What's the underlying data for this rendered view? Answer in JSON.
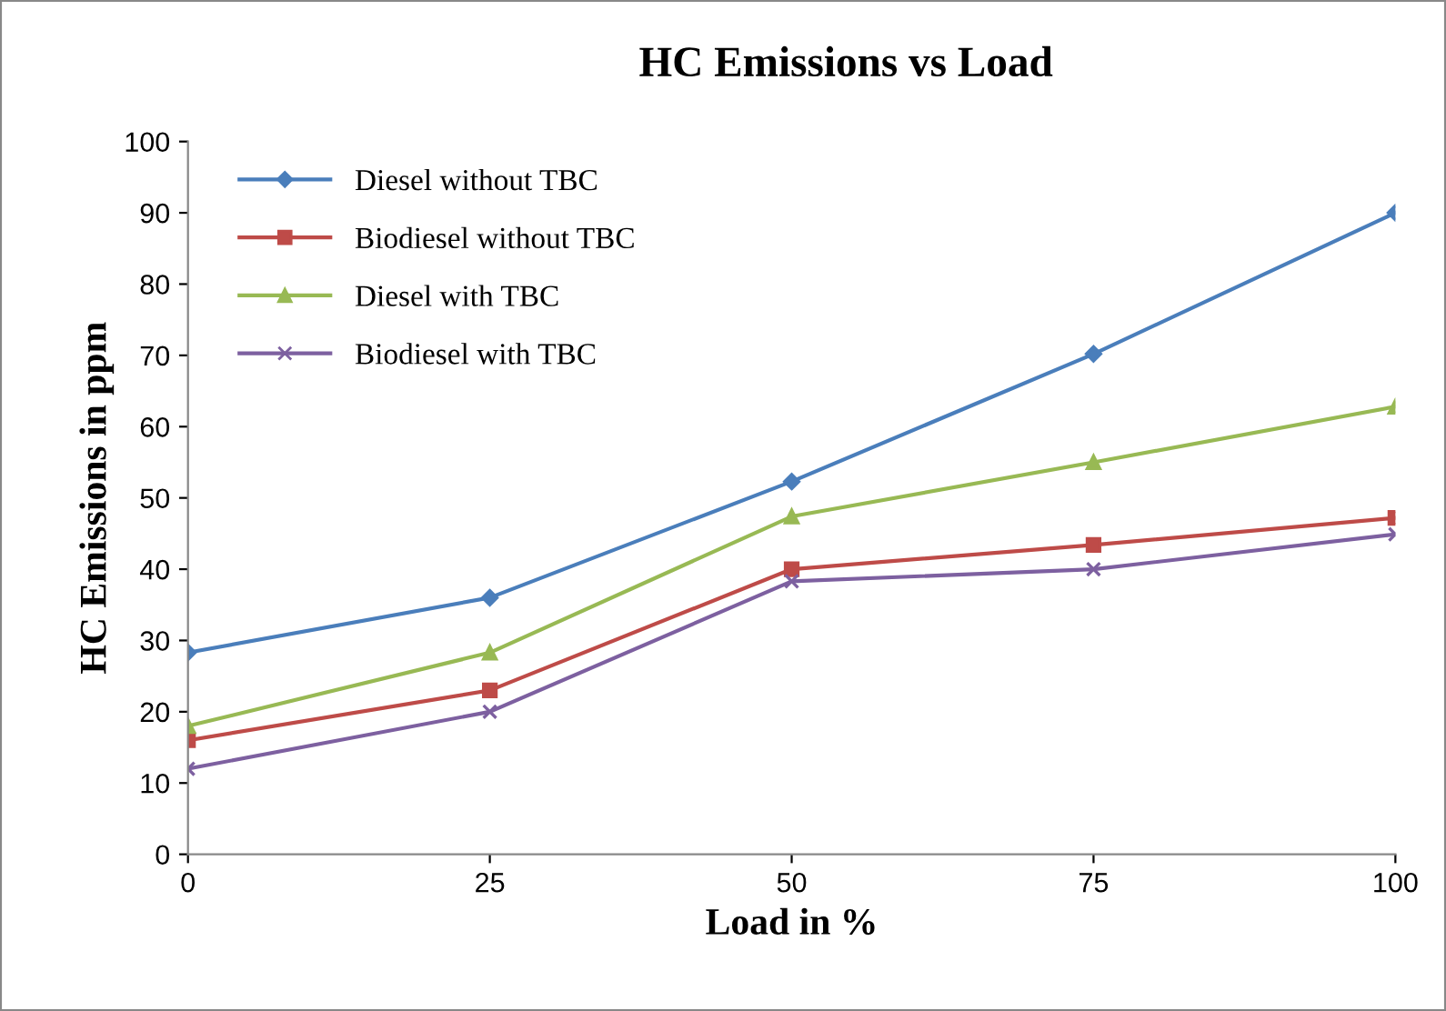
{
  "chart_data": {
    "type": "line",
    "title": "HC Emissions vs Load",
    "xlabel": "Load in %",
    "ylabel": "HC Emissions in ppm",
    "x": [
      0,
      25,
      50,
      75,
      100
    ],
    "xlim": [
      0,
      100
    ],
    "xticks": [
      0,
      25,
      50,
      75,
      100
    ],
    "ylim": [
      0,
      100
    ],
    "yticks": [
      0,
      10,
      20,
      30,
      40,
      50,
      60,
      70,
      80,
      90,
      100
    ],
    "grid": false,
    "legend": "top left",
    "series": [
      {
        "name": "Diesel without TBC",
        "color": "#4a7ebb",
        "marker": "diamond",
        "values": [
          28.3,
          36,
          52.3,
          70.2,
          90
        ]
      },
      {
        "name": "Biodiesel without TBC",
        "color": "#be4b48",
        "marker": "square",
        "values": [
          16,
          23,
          40,
          43.4,
          47.2
        ]
      },
      {
        "name": "Diesel with TBC",
        "color": "#98b954",
        "marker": "triangle",
        "values": [
          18,
          28.3,
          47.4,
          55,
          62.8
        ]
      },
      {
        "name": "Biodiesel with TBC",
        "color": "#7d60a0",
        "marker": "cross",
        "values": [
          12,
          20,
          38.3,
          40,
          44.9
        ]
      }
    ]
  }
}
